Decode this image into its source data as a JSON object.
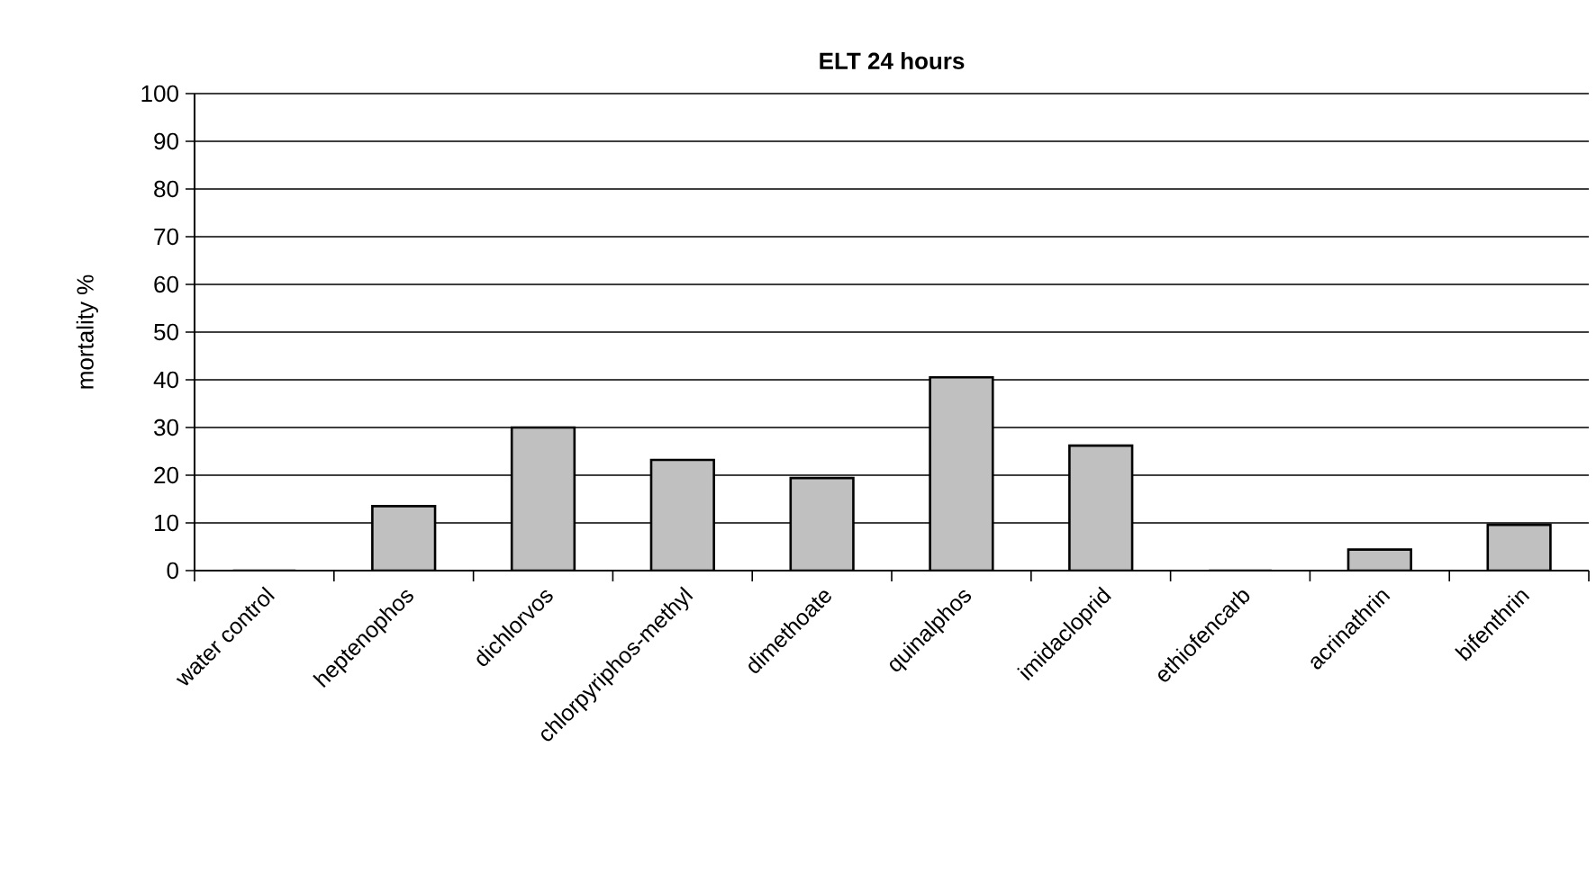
{
  "chart_data": {
    "type": "bar",
    "title": "**ELT 24 hours**",
    "ylabel": "mortality %",
    "categories": [
      "water control",
      "heptenophos",
      "dichlorvos",
      "chlorpyriphos-methyl",
      "dimethoate",
      "quinalphos",
      "imidacloprid",
      "ethiofencarb",
      "acrinathrin",
      "bifenthrin"
    ],
    "values": [
      0,
      13.5,
      30,
      23.2,
      19.4,
      40.5,
      26.2,
      0,
      4.4,
      9.6
    ],
    "color": "#c0c0c0",
    "ylim": [
      0,
      100
    ],
    "yticks": [
      0,
      10,
      20,
      30,
      40,
      50,
      60,
      70,
      80,
      90,
      100
    ],
    "grid": "y"
  }
}
